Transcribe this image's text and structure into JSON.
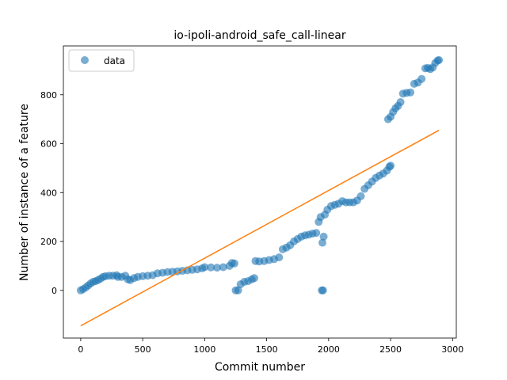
{
  "chart_data": {
    "type": "scatter",
    "title": "io-ipoli-android_safe_call-linear",
    "xlabel": "Commit number",
    "ylabel": "Number of instance of a feature",
    "xlim": [
      -140,
      3030
    ],
    "ylim": [
      -195,
      1000
    ],
    "xticks": [
      0,
      500,
      1000,
      1500,
      2000,
      2500,
      3000
    ],
    "yticks": [
      0,
      200,
      400,
      600,
      800
    ],
    "grid": false,
    "legend": {
      "position": "upper-left",
      "entries": [
        "data"
      ]
    },
    "colors": {
      "data": "#1f77b4",
      "fit": "#ff7f0e"
    },
    "series": [
      {
        "name": "data",
        "kind": "scatter",
        "points": [
          [
            0,
            0
          ],
          [
            20,
            5
          ],
          [
            40,
            12
          ],
          [
            60,
            20
          ],
          [
            80,
            28
          ],
          [
            100,
            35
          ],
          [
            120,
            38
          ],
          [
            140,
            42
          ],
          [
            160,
            48
          ],
          [
            180,
            55
          ],
          [
            200,
            58
          ],
          [
            230,
            60
          ],
          [
            260,
            60
          ],
          [
            290,
            62
          ],
          [
            300,
            55
          ],
          [
            330,
            55
          ],
          [
            360,
            60
          ],
          [
            380,
            45
          ],
          [
            400,
            42
          ],
          [
            430,
            50
          ],
          [
            460,
            55
          ],
          [
            500,
            58
          ],
          [
            540,
            60
          ],
          [
            580,
            62
          ],
          [
            620,
            70
          ],
          [
            660,
            72
          ],
          [
            700,
            75
          ],
          [
            740,
            76
          ],
          [
            780,
            78
          ],
          [
            820,
            80
          ],
          [
            860,
            82
          ],
          [
            900,
            84
          ],
          [
            940,
            86
          ],
          [
            980,
            90
          ],
          [
            1000,
            95
          ],
          [
            1050,
            94
          ],
          [
            1100,
            93
          ],
          [
            1150,
            95
          ],
          [
            1200,
            100
          ],
          [
            1220,
            112
          ],
          [
            1240,
            110
          ],
          [
            1250,
            0
          ],
          [
            1270,
            0
          ],
          [
            1290,
            25
          ],
          [
            1320,
            35
          ],
          [
            1350,
            38
          ],
          [
            1380,
            45
          ],
          [
            1400,
            50
          ],
          [
            1410,
            120
          ],
          [
            1440,
            118
          ],
          [
            1480,
            120
          ],
          [
            1520,
            124
          ],
          [
            1560,
            128
          ],
          [
            1600,
            135
          ],
          [
            1630,
            168
          ],
          [
            1660,
            175
          ],
          [
            1690,
            185
          ],
          [
            1720,
            200
          ],
          [
            1750,
            210
          ],
          [
            1780,
            220
          ],
          [
            1810,
            225
          ],
          [
            1840,
            228
          ],
          [
            1870,
            232
          ],
          [
            1900,
            235
          ],
          [
            1920,
            280
          ],
          [
            1935,
            300
          ],
          [
            1950,
            195
          ],
          [
            1960,
            220
          ],
          [
            1945,
            0
          ],
          [
            1955,
            0
          ],
          [
            1970,
            310
          ],
          [
            1990,
            330
          ],
          [
            2020,
            345
          ],
          [
            2050,
            350
          ],
          [
            2080,
            355
          ],
          [
            2110,
            365
          ],
          [
            2140,
            360
          ],
          [
            2170,
            360
          ],
          [
            2200,
            360
          ],
          [
            2230,
            368
          ],
          [
            2260,
            385
          ],
          [
            2290,
            415
          ],
          [
            2320,
            430
          ],
          [
            2350,
            445
          ],
          [
            2380,
            460
          ],
          [
            2410,
            470
          ],
          [
            2440,
            478
          ],
          [
            2470,
            490
          ],
          [
            2490,
            505
          ],
          [
            2500,
            510
          ],
          [
            2480,
            700
          ],
          [
            2500,
            710
          ],
          [
            2520,
            730
          ],
          [
            2540,
            745
          ],
          [
            2560,
            755
          ],
          [
            2580,
            770
          ],
          [
            2600,
            805
          ],
          [
            2630,
            808
          ],
          [
            2660,
            810
          ],
          [
            2690,
            845
          ],
          [
            2720,
            850
          ],
          [
            2750,
            865
          ],
          [
            2780,
            908
          ],
          [
            2800,
            910
          ],
          [
            2820,
            905
          ],
          [
            2840,
            912
          ],
          [
            2860,
            930
          ],
          [
            2880,
            940
          ],
          [
            2890,
            942
          ]
        ]
      },
      {
        "name": "",
        "kind": "line",
        "points": [
          [
            0,
            -145
          ],
          [
            2890,
            655
          ]
        ]
      }
    ]
  }
}
